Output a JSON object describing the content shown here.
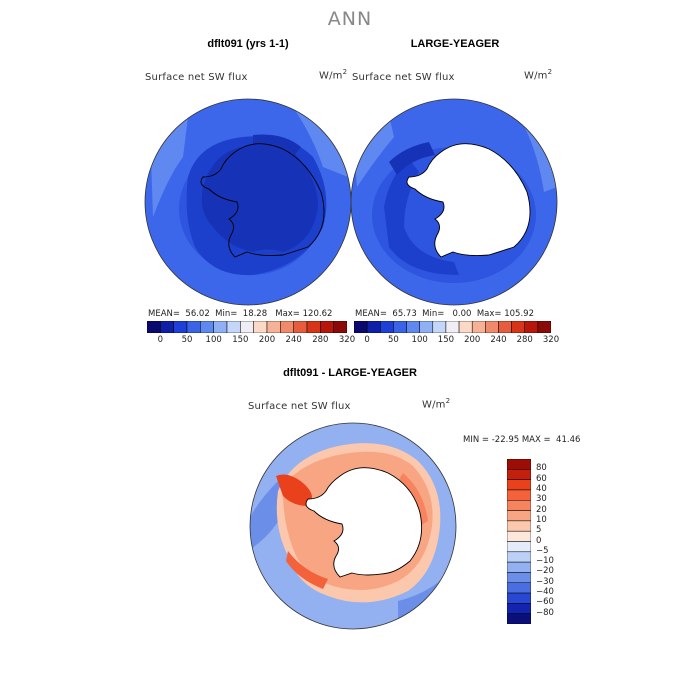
{
  "figure": {
    "title": "ANN"
  },
  "panel_left": {
    "title": "dflt091 (yrs 1-1)",
    "variable": "Surface net SW flux",
    "units_base": "W/m",
    "units_exp": "2",
    "stats": {
      "mean_label": "MEAN=",
      "mean": "56.02",
      "min_label": "Min=",
      "min": "18.28",
      "max_label": "Max=",
      "max": "120.62"
    }
  },
  "panel_right": {
    "title": "LARGE-YEAGER",
    "variable": "Surface net SW flux",
    "units_base": "W/m",
    "units_exp": "2",
    "stats": {
      "mean_label": "MEAN=",
      "mean": "65.73",
      "min_label": "Min=",
      "min": "0.00",
      "max_label": "Max=",
      "max": "105.92"
    }
  },
  "top_colorbar": {
    "labels": [
      "0",
      "50",
      "100",
      "150",
      "200",
      "240",
      "280",
      "320"
    ],
    "colors": [
      "#0a0a6e",
      "#0f1fa8",
      "#1f3fd9",
      "#3a63e8",
      "#5f88f0",
      "#90b0f5",
      "#c4d6fa",
      "#f0eef4",
      "#fbd9c6",
      "#f6b296",
      "#f18a6a",
      "#e85c3e",
      "#d83418",
      "#b8160a",
      "#8a0a08"
    ]
  },
  "panel_diff": {
    "title": "dflt091 - LARGE-YEAGER",
    "variable": "Surface net SW flux",
    "units_base": "W/m",
    "units_exp": "2",
    "stats": {
      "min_label": "MIN =",
      "min": "-22.95",
      "max_label": "MAX =",
      "max": "41.46"
    }
  },
  "diff_colorbar": {
    "labels": [
      "80",
      "60",
      "40",
      "30",
      "20",
      "10",
      "5",
      "0",
      "−5",
      "−10",
      "−20",
      "−30",
      "−40",
      "−60",
      "−80"
    ],
    "colors": [
      "#9b0d06",
      "#c41f0c",
      "#e8411c",
      "#f3623a",
      "#f7845e",
      "#f8a583",
      "#fbc7ad",
      "#fde7da",
      "#e4ecfa",
      "#bcd0f5",
      "#93b1f0",
      "#6b8fe9",
      "#4a6ee2",
      "#2848d4",
      "#1325b0",
      "#0a0f7a"
    ]
  },
  "chart_data": {
    "type": "map",
    "projection": "south polar stereographic",
    "panels": [
      {
        "name": "dflt091 (yrs 1-1)",
        "mean": 56.02,
        "min": 18.28,
        "max": 120.62,
        "units": "W/m2"
      },
      {
        "name": "LARGE-YEAGER",
        "mean": 65.73,
        "min": 0.0,
        "max": 105.92,
        "units": "W/m2"
      },
      {
        "name": "dflt091 - LARGE-YEAGER",
        "min": -22.95,
        "max": 41.46,
        "units": "W/m2"
      }
    ]
  }
}
